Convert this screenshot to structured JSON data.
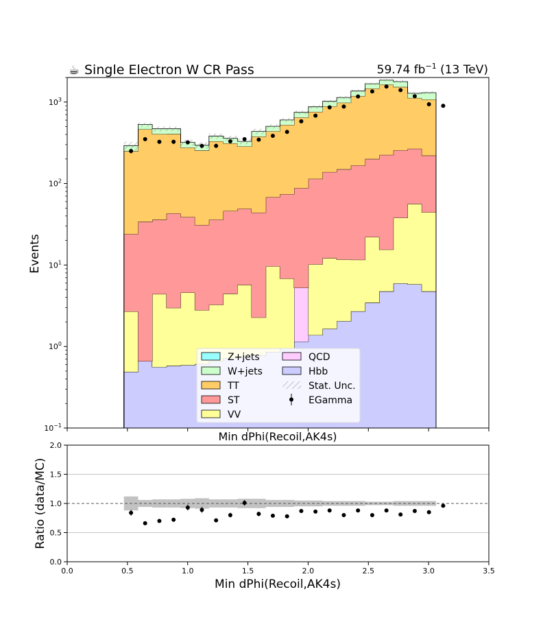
{
  "title": {
    "icon": "coffee-icon",
    "icon_glyph": "☕",
    "text": "Single Electron W CR Pass"
  },
  "lumi": {
    "value": "59.74 fb",
    "exp": "−1",
    "energy": " (13 TeV)"
  },
  "chart_data": [
    {
      "type": "area",
      "style": "stacked-step-histogram",
      "y_scale": "log",
      "ylim": [
        0.1,
        2000
      ],
      "ylabel": "Events",
      "xlabel": "Min dPhi(Recoil,AK4s)",
      "y_tick_labels": [
        {
          "v": 0.1,
          "base": "10",
          "exp": "−1"
        },
        {
          "v": 1,
          "base": "10",
          "exp": "0"
        },
        {
          "v": 10,
          "base": "10",
          "exp": "1"
        },
        {
          "v": 100,
          "base": "10",
          "exp": "2"
        },
        {
          "v": 1000,
          "base": "10",
          "exp": "3"
        }
      ],
      "bin_edges": [
        0.471,
        0.589,
        0.706,
        0.824,
        0.942,
        1.06,
        1.177,
        1.295,
        1.413,
        1.531,
        1.649,
        1.766,
        1.884,
        2.002,
        2.12,
        2.237,
        2.355,
        2.473,
        2.591,
        2.708,
        2.826,
        2.944,
        3.062
      ],
      "series": [
        {
          "name": "Hbb",
          "color": "#ccccff",
          "values": [
            0.49,
            0.66,
            0.56,
            0.58,
            0.59,
            0.61,
            0.66,
            0.72,
            0.75,
            0.78,
            0.86,
            0.95,
            1.15,
            1.38,
            1.65,
            2.05,
            2.7,
            3.45,
            4.75,
            5.95,
            5.8,
            4.75,
            4.0
          ]
        },
        {
          "name": "QCD",
          "color": "#ffccff",
          "values": [
            0,
            0,
            0,
            0,
            0,
            0,
            0,
            0,
            0,
            0,
            0,
            0,
            4.1,
            0,
            0,
            0,
            0,
            0,
            0,
            0,
            0,
            0,
            0
          ]
        },
        {
          "name": "VV",
          "color": "#ffff99",
          "values": [
            2.2,
            0,
            3.84,
            2.4,
            4.0,
            2.19,
            2.59,
            3.72,
            4.96,
            1.49,
            8.79,
            5.88,
            0,
            8.82,
            10.5,
            9.6,
            8.9,
            18.6,
            10.7,
            32.0,
            50.4,
            39.6,
            56.0
          ]
        },
        {
          "name": "ST",
          "color": "#ff9999",
          "values": [
            21.3,
            33.3,
            31.6,
            40.0,
            34.4,
            28.2,
            32.8,
            41.6,
            43.3,
            41.7,
            58.3,
            67.2,
            82.7,
            104,
            126,
            138,
            155,
            178,
            209,
            218,
            211,
            176,
            157
          ]
        },
        {
          "name": "TT",
          "color": "#ffcc66",
          "values": [
            226,
            429,
            369,
            363,
            237,
            224,
            294,
            265,
            236,
            334,
            369,
            450,
            560,
            644,
            748,
            833,
            1019,
            1268,
            1411,
            1276,
            853,
            853,
            380
          ]
        },
        {
          "name": "W+jets",
          "color": "#ccffcc",
          "values": [
            42,
            68,
            65,
            64,
            44,
            40,
            53,
            49,
            44,
            58,
            67,
            78,
            100,
            116,
            134,
            156,
            180,
            210,
            220,
            250,
            160,
            230,
            420
          ]
        },
        {
          "name": "Z+jets",
          "color": "#99ffff",
          "values": [
            0,
            0,
            0,
            0,
            0,
            0,
            0,
            0,
            0,
            0,
            0,
            0,
            0,
            0,
            0,
            0,
            0,
            0,
            0,
            0,
            0,
            0,
            0
          ]
        }
      ],
      "data": {
        "name": "EGamma",
        "x": [
          0.53,
          0.647,
          0.765,
          0.883,
          1.001,
          1.118,
          1.236,
          1.354,
          1.472,
          1.59,
          1.707,
          1.825,
          1.943,
          2.061,
          2.178,
          2.296,
          2.414,
          2.532,
          2.65,
          2.767,
          2.885,
          3.003,
          3.121
        ],
        "y": [
          250,
          350,
          325,
          325,
          320,
          290,
          290,
          330,
          350,
          345,
          385,
          430,
          580,
          680,
          860,
          880,
          1170,
          1350,
          1550,
          1400,
          1180,
          940,
          900
        ]
      },
      "uncertainty": {
        "name": "Stat. Unc.",
        "rel_err": [
          0.12,
          0.06,
          0.07,
          0.07,
          0.08,
          0.09,
          0.07,
          0.07,
          0.08,
          0.08,
          0.06,
          0.06,
          0.05,
          0.05,
          0.04,
          0.04,
          0.04,
          0.03,
          0.03,
          0.04,
          0.04,
          0.04,
          0.04
        ]
      },
      "legend": {
        "placement": "lower-center",
        "entries": [
          {
            "label": "Z+jets",
            "kind": "patch",
            "color": "#99ffff"
          },
          {
            "label": "QCD",
            "kind": "patch",
            "color": "#ffccff"
          },
          {
            "label": "W+jets",
            "kind": "patch",
            "color": "#ccffcc"
          },
          {
            "label": "Hbb",
            "kind": "patch",
            "color": "#ccccff"
          },
          {
            "label": "TT",
            "kind": "patch",
            "color": "#ffcc66"
          },
          {
            "label": "Stat. Unc.",
            "kind": "hatch",
            "color": "#888888"
          },
          {
            "label": "ST",
            "kind": "patch",
            "color": "#ff9999"
          },
          {
            "label": "EGamma",
            "kind": "marker",
            "color": "#000000"
          },
          {
            "label": "VV",
            "kind": "patch",
            "color": "#ffff99"
          }
        ]
      }
    },
    {
      "type": "scatter",
      "xlabel": "Min dPhi(Recoil,AK4s)",
      "ylabel": "Ratio (data/MC)",
      "xlim": [
        0.0,
        3.5
      ],
      "ylim": [
        0.0,
        2.0
      ],
      "x_tick_labels": [
        "0.0",
        "0.5",
        "1.0",
        "1.5",
        "2.0",
        "2.5",
        "3.0",
        "3.5"
      ],
      "y_tick_labels": [
        "0.0",
        "0.5",
        "1.0",
        "1.5",
        "2.0"
      ],
      "grid": "horizontal",
      "reference_line": 1.0,
      "band_color": "#999999",
      "x": [
        0.53,
        0.647,
        0.765,
        0.883,
        1.001,
        1.118,
        1.236,
        1.354,
        1.472,
        1.59,
        1.707,
        1.825,
        1.943,
        2.061,
        2.178,
        2.296,
        2.414,
        2.532,
        2.65,
        2.767,
        2.885,
        3.003,
        3.121
      ],
      "y": [
        0.84,
        0.66,
        0.7,
        0.72,
        0.93,
        0.89,
        0.71,
        0.8,
        1.01,
        0.82,
        0.79,
        0.78,
        0.87,
        0.86,
        0.88,
        0.8,
        0.88,
        0.8,
        0.88,
        0.81,
        0.87,
        0.85,
        0.96
      ],
      "yerr": [
        0.05,
        0.03,
        0.03,
        0.03,
        0.05,
        0.05,
        0.03,
        0.04,
        0.05,
        0.04,
        0.03,
        0.03,
        0.03,
        0.03,
        0.03,
        0.02,
        0.02,
        0.02,
        0.02,
        0.02,
        0.02,
        0.02,
        0.02
      ]
    }
  ]
}
